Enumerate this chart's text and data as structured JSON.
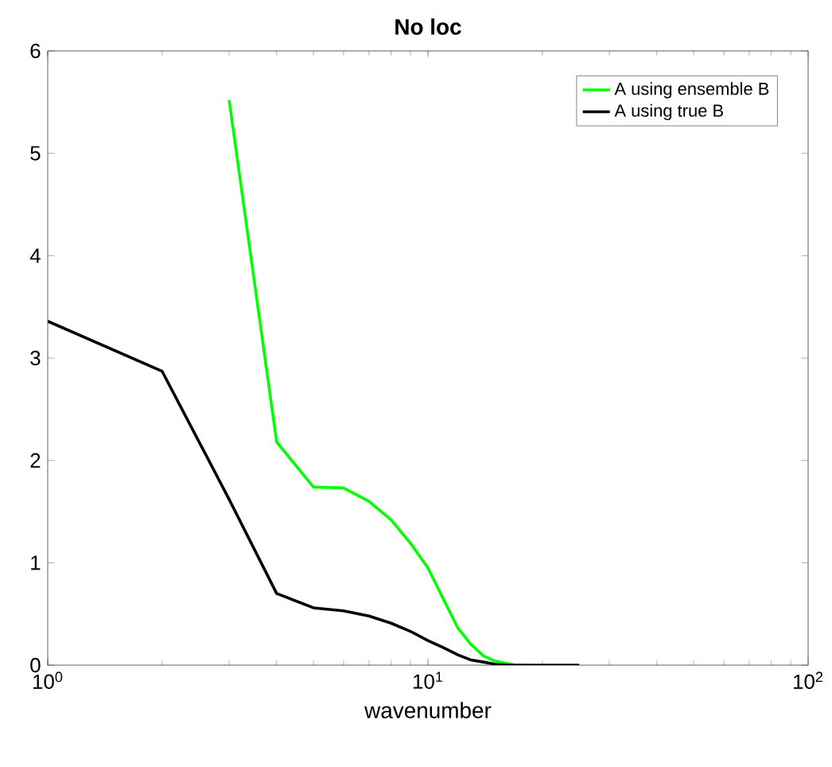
{
  "chart_data": {
    "type": "line",
    "title": "No loc",
    "xlabel": "wavenumber",
    "x": [
      1,
      2,
      3,
      4,
      5,
      6,
      7,
      8,
      9,
      10,
      11,
      12,
      13,
      14,
      15,
      16,
      17,
      18,
      19,
      20,
      21,
      22,
      23,
      24,
      25
    ],
    "series": [
      {
        "name": "A using ensemble B",
        "color": "#00ff00",
        "values": [
          null,
          null,
          5.52,
          2.18,
          1.74,
          1.73,
          1.6,
          1.42,
          1.19,
          0.95,
          0.64,
          0.36,
          0.2,
          0.09,
          0.04,
          0.02,
          0,
          0,
          null,
          null,
          null,
          null,
          null,
          null,
          null
        ]
      },
      {
        "name": "A using true B",
        "color": "#000000",
        "values": [
          3.36,
          2.87,
          1.62,
          0.7,
          0.56,
          0.53,
          0.48,
          0.41,
          0.33,
          0.24,
          0.17,
          0.1,
          0.05,
          0.03,
          0.01,
          0,
          0,
          0,
          0,
          0,
          0,
          0,
          0,
          0,
          0
        ]
      }
    ],
    "log": "x",
    "xlim": [
      1,
      100
    ],
    "ylim": [
      0,
      6
    ],
    "xticks": [
      {
        "value": 1,
        "label": "10$^{0}$"
      },
      {
        "value": 10,
        "label": "10$^{1}$"
      },
      {
        "value": 100,
        "label": "10$^{2}$"
      }
    ],
    "yticks": [
      0,
      1,
      2,
      3,
      4,
      5,
      6
    ],
    "grid": false,
    "legend": "top right",
    "marker": "none",
    "line_style": "solid"
  }
}
